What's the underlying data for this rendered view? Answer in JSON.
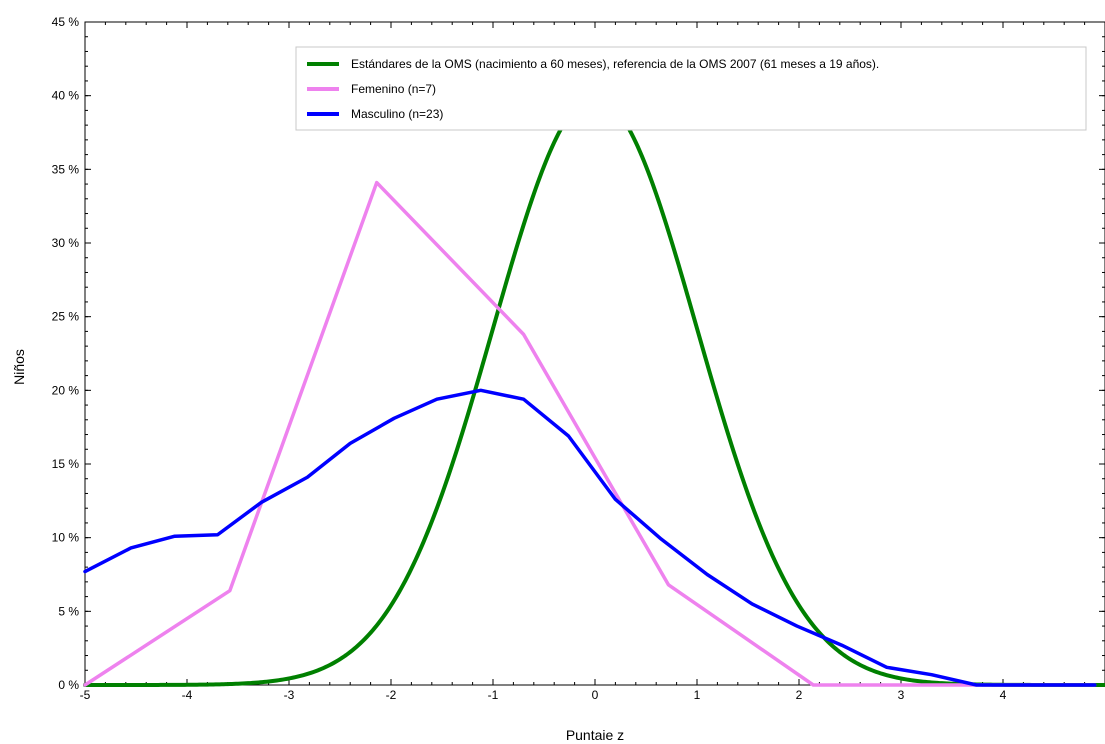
{
  "chart_data": {
    "type": "line",
    "title": "",
    "xlabel": "Puntaie z",
    "ylabel": "Niños",
    "xlim": [
      -5,
      5
    ],
    "ylim": [
      0,
      45
    ],
    "x_ticks": [
      -5,
      -4,
      -3,
      -2,
      -1,
      0,
      1,
      2,
      3,
      4
    ],
    "x_tick_labels": [
      "-5",
      "-4",
      "-3",
      "-2",
      "-1",
      "0",
      "1",
      "2",
      "3",
      "4"
    ],
    "y_ticks": [
      0,
      5,
      10,
      15,
      20,
      25,
      30,
      35,
      40,
      45
    ],
    "y_tick_labels": [
      "0 %",
      "5 %",
      "10 %",
      "15 %",
      "20 %",
      "25 %",
      "30 %",
      "35 %",
      "40 %",
      "45 %"
    ],
    "grid": false,
    "legend_position": "top-right",
    "series": [
      {
        "name": "Estándares de la OMS (nacimiento a 60 meses), referencia de la OMS 2007 (61 meses a 19 años).",
        "color": "#008000",
        "kind": "normal-curve",
        "mean": 0,
        "sd": 1,
        "peak": 39.9
      },
      {
        "name": "Femenino (n=7)",
        "color": "#ee82ee",
        "x": [
          -5.0,
          -3.58,
          -2.14,
          -0.7,
          0.72,
          2.14,
          4.9
        ],
        "y": [
          0.0,
          6.4,
          34.1,
          23.8,
          6.8,
          0.0,
          0.0
        ]
      },
      {
        "name": "Masculino (n=23)",
        "color": "#0000ff",
        "x": [
          -5.0,
          -4.55,
          -4.12,
          -3.7,
          -3.27,
          -2.82,
          -2.4,
          -1.97,
          -1.55,
          -1.12,
          -0.7,
          -0.26,
          0.2,
          0.65,
          1.1,
          1.54,
          1.98,
          2.42,
          2.86,
          3.3,
          3.74,
          4.18,
          4.9
        ],
        "y": [
          7.7,
          9.3,
          10.1,
          10.2,
          12.4,
          14.1,
          16.4,
          18.1,
          19.4,
          20.0,
          19.4,
          16.9,
          12.6,
          9.9,
          7.5,
          5.5,
          4.0,
          2.7,
          1.2,
          0.7,
          0.0,
          0.0,
          0.0
        ]
      }
    ]
  }
}
